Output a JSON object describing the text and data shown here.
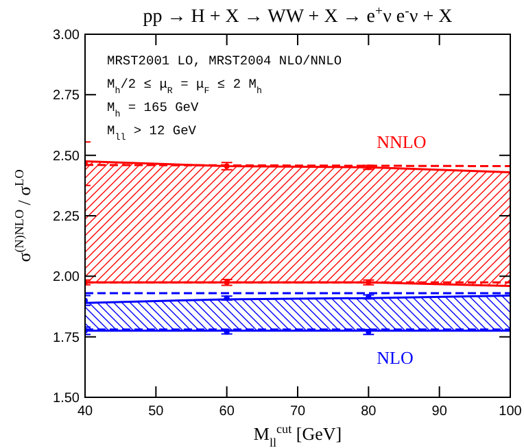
{
  "chart_data": {
    "type": "line",
    "title": "pp → H + X → WW + X → e$^{+}$ν e$^{-}$ν + X",
    "xlabel": "M$_{ll}$$^{cut}$ [GeV]",
    "ylabel": "σ$^{(N)NLO}$ / σ$^{LO}$",
    "xlim": [
      40,
      100
    ],
    "xticks": [
      40,
      50,
      60,
      70,
      80,
      90,
      100
    ],
    "ylim": [
      1.5,
      3.0
    ],
    "yticks": [
      {
        "value": 1.5,
        "label": "1.50"
      },
      {
        "value": 1.75,
        "label": "1.75"
      },
      {
        "value": 2.0,
        "label": "2.00"
      },
      {
        "value": 2.25,
        "label": "2.25"
      },
      {
        "value": 2.5,
        "label": "2.50"
      },
      {
        "value": 2.75,
        "label": "2.75"
      },
      {
        "value": 3.0,
        "label": "3.00"
      }
    ],
    "annotations": [
      "MRST2001 LO, MRST2004 NLO/NNLO",
      "M$_{h}$/2 ≤ μ$_{R}$ = μ$_{F}$ ≤ 2 M$_{h}$",
      "M$_{h}$ = 165 GeV",
      "M$_{ll}$ > 12 GeV"
    ],
    "series": [
      {
        "name": "NNLO",
        "color": "#ff0000",
        "x": [
          40,
          60,
          80,
          100
        ],
        "values": [
          2.475,
          2.455,
          2.45,
          2.43
        ],
        "lower": [
          1.975,
          1.975,
          1.975,
          1.96
        ],
        "upper": [
          2.475,
          2.455,
          2.45,
          2.43
        ]
      },
      {
        "name": "NLO",
        "color": "#0000ff",
        "x": [
          40,
          60,
          80,
          100
        ],
        "values": [
          1.89,
          1.905,
          1.91,
          1.92
        ],
        "lower": [
          1.775,
          1.775,
          1.775,
          1.775
        ],
        "upper": [
          1.89,
          1.905,
          1.91,
          1.92
        ]
      },
      {
        "type": "line",
        "color": "#ff0000",
        "line_style": "dashed",
        "x": [
          40,
          100
        ],
        "values": [
          2.46,
          2.455
        ]
      },
      {
        "type": "line",
        "color": "#ff0000",
        "line_style": "dashed",
        "x": [
          40,
          100
        ],
        "values": [
          1.975,
          1.975
        ]
      },
      {
        "type": "line",
        "color": "#0000ff",
        "line_style": "dashed",
        "x": [
          40,
          100
        ],
        "values": [
          1.93,
          1.93
        ]
      },
      {
        "type": "line",
        "color": "#0000ff",
        "line_style": "dashed",
        "x": [
          40,
          100
        ],
        "values": [
          1.78,
          1.78
        ]
      },
      {
        "type": "line",
        "color": "#ff0000",
        "x": [
          40,
          60,
          80,
          100
        ],
        "values": [
          1.975,
          1.975,
          1.975,
          1.96
        ]
      },
      {
        "type": "line",
        "color": "#0000ff",
        "x": [
          40,
          60,
          80,
          100
        ],
        "values": [
          1.775,
          1.775,
          1.775,
          1.775
        ]
      },
      {
        "type": "scatter",
        "color": "#ff0000",
        "x": [
          40,
          60,
          80
        ],
        "values": [
          2.465,
          2.455,
          2.45
        ],
        "errors": [
          0.09,
          0.015,
          0.008
        ]
      },
      {
        "type": "scatter",
        "color": "#ff0000",
        "x": [
          40,
          60,
          80
        ],
        "values": [
          1.975,
          1.975,
          1.975
        ],
        "errors": [
          0.01,
          0.012,
          0.01
        ]
      },
      {
        "type": "scatter",
        "color": "#0000ff",
        "x": [
          40,
          60,
          80
        ],
        "values": [
          1.9,
          1.91,
          1.915
        ],
        "errors": [
          0.02,
          0.008,
          0.008
        ]
      },
      {
        "type": "scatter",
        "color": "#0000ff",
        "x": [
          40,
          60,
          80
        ],
        "values": [
          1.775,
          1.77,
          1.77
        ],
        "errors": [
          0.015,
          0.008,
          0.01
        ]
      }
    ]
  }
}
